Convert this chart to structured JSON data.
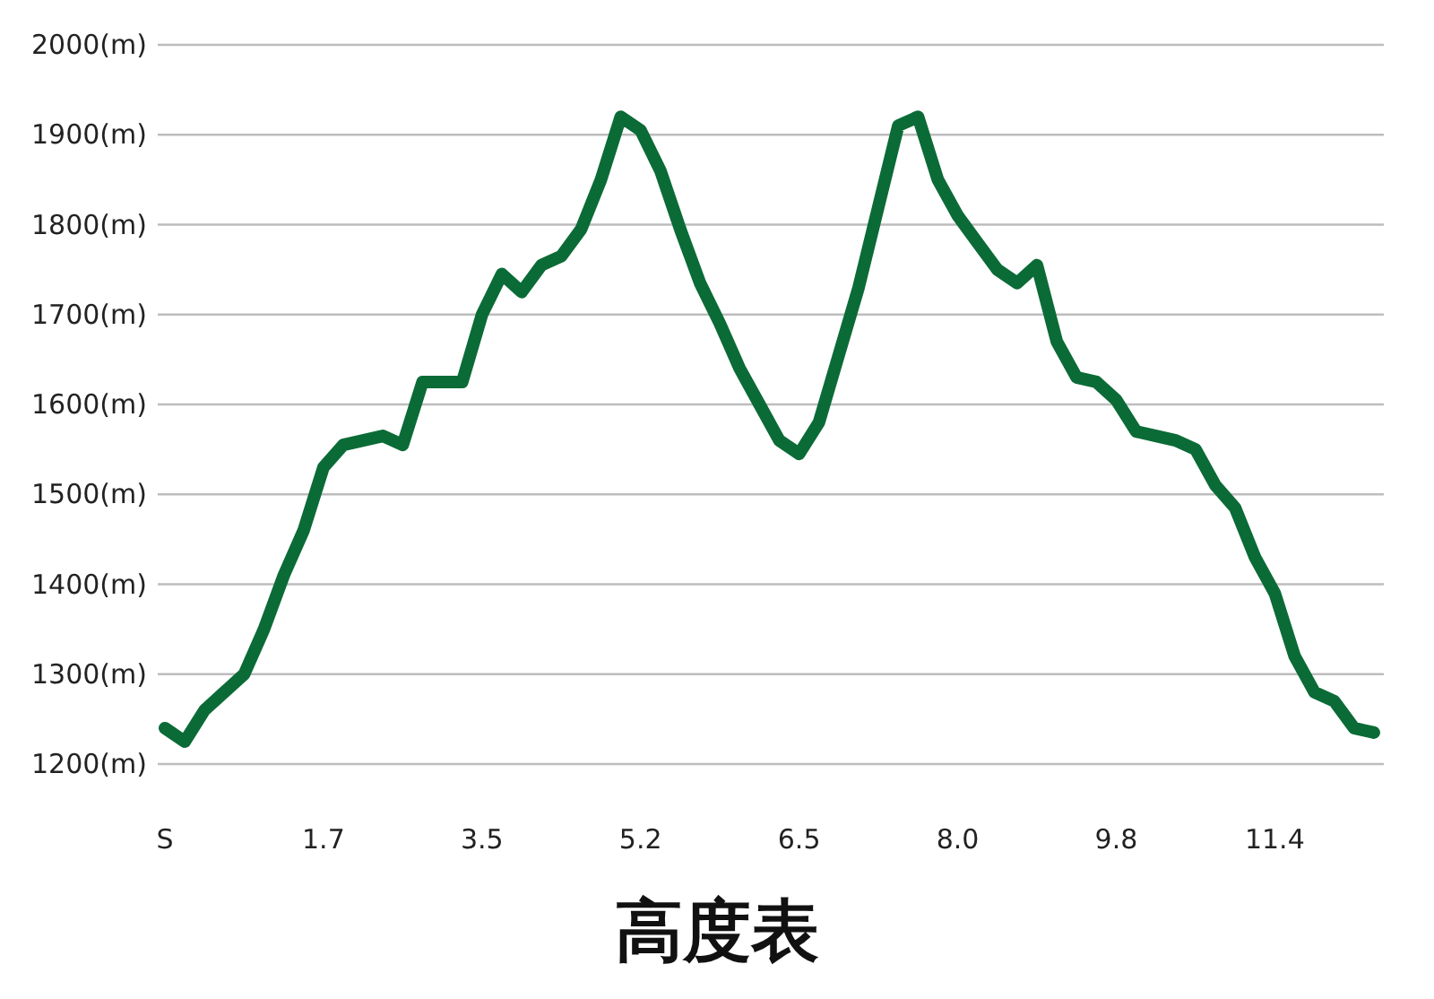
{
  "chart_data": {
    "type": "line",
    "title": "高度表",
    "categories": [
      "S",
      null,
      null,
      null,
      null,
      null,
      null,
      null,
      "1.7",
      null,
      null,
      null,
      null,
      null,
      null,
      null,
      "3.5",
      null,
      null,
      null,
      null,
      null,
      null,
      null,
      "5.2",
      null,
      null,
      null,
      null,
      null,
      null,
      null,
      "6.5",
      null,
      null,
      null,
      null,
      null,
      null,
      null,
      "8.0",
      null,
      null,
      null,
      null,
      null,
      null,
      null,
      "9.8",
      null,
      null,
      null,
      null,
      null,
      null,
      null,
      "11.4",
      null,
      null,
      null,
      null,
      null
    ],
    "series": [
      {
        "color": "#0b6b36",
        "values": [
          1240,
          1225,
          1260,
          1280,
          1300,
          1350,
          1410,
          1460,
          1530,
          1555,
          1560,
          1565,
          1555,
          1625,
          1625,
          1625,
          1700,
          1745,
          1725,
          1755,
          1765,
          1795,
          1850,
          1920,
          1905,
          1860,
          1795,
          1735,
          1690,
          1640,
          1600,
          1560,
          1545,
          1580,
          1655,
          1730,
          1820,
          1910,
          1920,
          1850,
          1810,
          1780,
          1750,
          1735,
          1755,
          1670,
          1630,
          1625,
          1605,
          1570,
          1565,
          1560,
          1550,
          1510,
          1485,
          1430,
          1390,
          1320,
          1280,
          1270,
          1240,
          1235
        ]
      }
    ],
    "ylim": [
      1200,
      2000
    ],
    "yticks": [
      {
        "value": 1200,
        "label": "1200(m)"
      },
      {
        "value": 1300,
        "label": "1300(m)"
      },
      {
        "value": 1400,
        "label": "1400(m)"
      },
      {
        "value": 1500,
        "label": "1500(m)"
      },
      {
        "value": 1600,
        "label": "1600(m)"
      },
      {
        "value": 1700,
        "label": "1700(m)"
      },
      {
        "value": 1800,
        "label": "1800(m)"
      },
      {
        "value": 1900,
        "label": "1900(m)"
      },
      {
        "value": 2000,
        "label": "2000(m)"
      }
    ],
    "grid": "y",
    "marker": "none",
    "line_style": "solid"
  }
}
